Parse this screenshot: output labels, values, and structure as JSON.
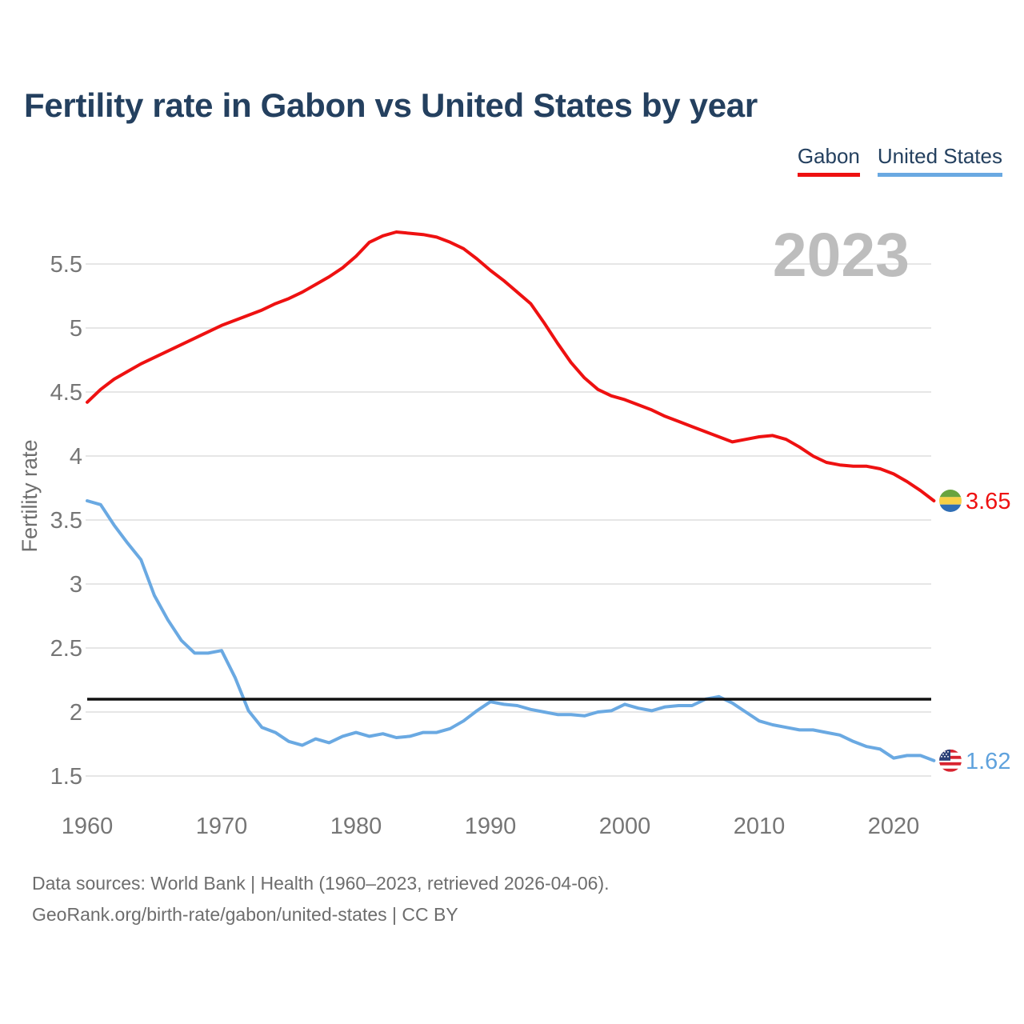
{
  "title": "Fertility rate in Gabon vs United States by year",
  "legend": {
    "items": [
      {
        "label": "Gabon",
        "color": "#ee1111"
      },
      {
        "label": "United States",
        "color": "#6aa9e2"
      }
    ]
  },
  "watermark_year": "2023",
  "y_axis_label": "Fertility rate",
  "footer": {
    "line1": "Data sources: World Bank | Health (1960–2023, retrieved 2026-04-06).",
    "line2": "GeoRank.org/birth-rate/gabon/united-states | CC BY"
  },
  "chart_data": {
    "type": "line",
    "title": "Fertility rate in Gabon vs United States by year",
    "xlabel": "",
    "ylabel": "Fertility rate",
    "x_range": [
      1960,
      2023
    ],
    "ylim": [
      1.5,
      5.5
    ],
    "yticks": [
      1.5,
      2,
      2.5,
      3,
      3.5,
      4,
      4.5,
      5,
      5.5
    ],
    "xticks": [
      1960,
      1970,
      1980,
      1990,
      2000,
      2010,
      2020
    ],
    "grid": "horizontal",
    "legend_position": "top-right",
    "reference_line": {
      "value": 2.1,
      "color": "#111111",
      "meaning": "replacement-level fertility"
    },
    "series": [
      {
        "name": "Gabon",
        "color": "#ee1111",
        "label_color": "#ee1111",
        "end_label": "3.65",
        "flag": "gabon",
        "values": [
          4.42,
          4.52,
          4.6,
          4.66,
          4.72,
          4.77,
          4.82,
          4.87,
          4.92,
          4.97,
          5.02,
          5.06,
          5.1,
          5.14,
          5.19,
          5.23,
          5.28,
          5.34,
          5.4,
          5.47,
          5.56,
          5.67,
          5.72,
          5.75,
          5.74,
          5.73,
          5.71,
          5.67,
          5.62,
          5.54,
          5.45,
          5.37,
          5.28,
          5.19,
          5.04,
          4.88,
          4.73,
          4.61,
          4.52,
          4.47,
          4.44,
          4.4,
          4.36,
          4.31,
          4.27,
          4.23,
          4.19,
          4.15,
          4.11,
          4.13,
          4.15,
          4.16,
          4.13,
          4.07,
          4.0,
          3.95,
          3.93,
          3.92,
          3.92,
          3.9,
          3.86,
          3.8,
          3.73,
          3.65
        ]
      },
      {
        "name": "United States",
        "color": "#6aa9e2",
        "label_color": "#5fa2dd",
        "end_label": "1.62",
        "flag": "us",
        "values": [
          3.65,
          3.62,
          3.46,
          3.32,
          3.19,
          2.91,
          2.72,
          2.56,
          2.46,
          2.46,
          2.48,
          2.27,
          2.01,
          1.88,
          1.84,
          1.77,
          1.74,
          1.79,
          1.76,
          1.81,
          1.84,
          1.81,
          1.83,
          1.8,
          1.81,
          1.84,
          1.84,
          1.87,
          1.93,
          2.01,
          2.08,
          2.06,
          2.05,
          2.02,
          2.0,
          1.98,
          1.98,
          1.97,
          2.0,
          2.01,
          2.06,
          2.03,
          2.01,
          2.04,
          2.05,
          2.05,
          2.1,
          2.12,
          2.07,
          2.0,
          1.93,
          1.9,
          1.88,
          1.86,
          1.86,
          1.84,
          1.82,
          1.77,
          1.73,
          1.71,
          1.64,
          1.66,
          1.66,
          1.62
        ]
      }
    ],
    "flag_colors": {
      "gabon": {
        "green": "#68a43f",
        "yellow": "#f7d046",
        "blue": "#2f6eb5"
      },
      "us": {
        "canton": "#2b3f76",
        "stripe_red": "#d8232f",
        "stripe_white": "#ffffff",
        "star": "#ffffff"
      }
    }
  }
}
